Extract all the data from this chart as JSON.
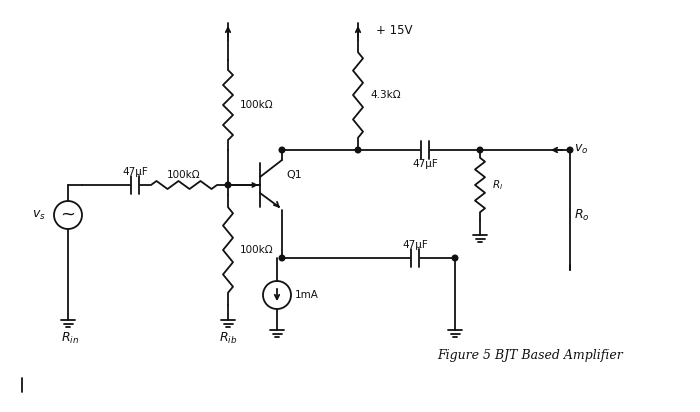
{
  "title": "Figure 5 BJT Based Amplifier",
  "background_color": "#ffffff",
  "line_color": "#111111",
  "figsize": [
    7.0,
    4.12
  ],
  "dpi": 100,
  "labels": {
    "vcc": "+ 15V",
    "r1": "100kΩ",
    "r2": "100kΩ",
    "r_h": "100kΩ",
    "r_c": "4.3kΩ",
    "c_in": "47μF",
    "c_out": "47μF",
    "c_e": "47μF",
    "rl": "$R_l$",
    "ro": "$R_o$",
    "rin": "$R_{in}$",
    "rib": "$R_{ib}$",
    "vs": "$v_s$",
    "vo": "$v_o$",
    "q1": "Q1",
    "isrc": "1mA"
  }
}
